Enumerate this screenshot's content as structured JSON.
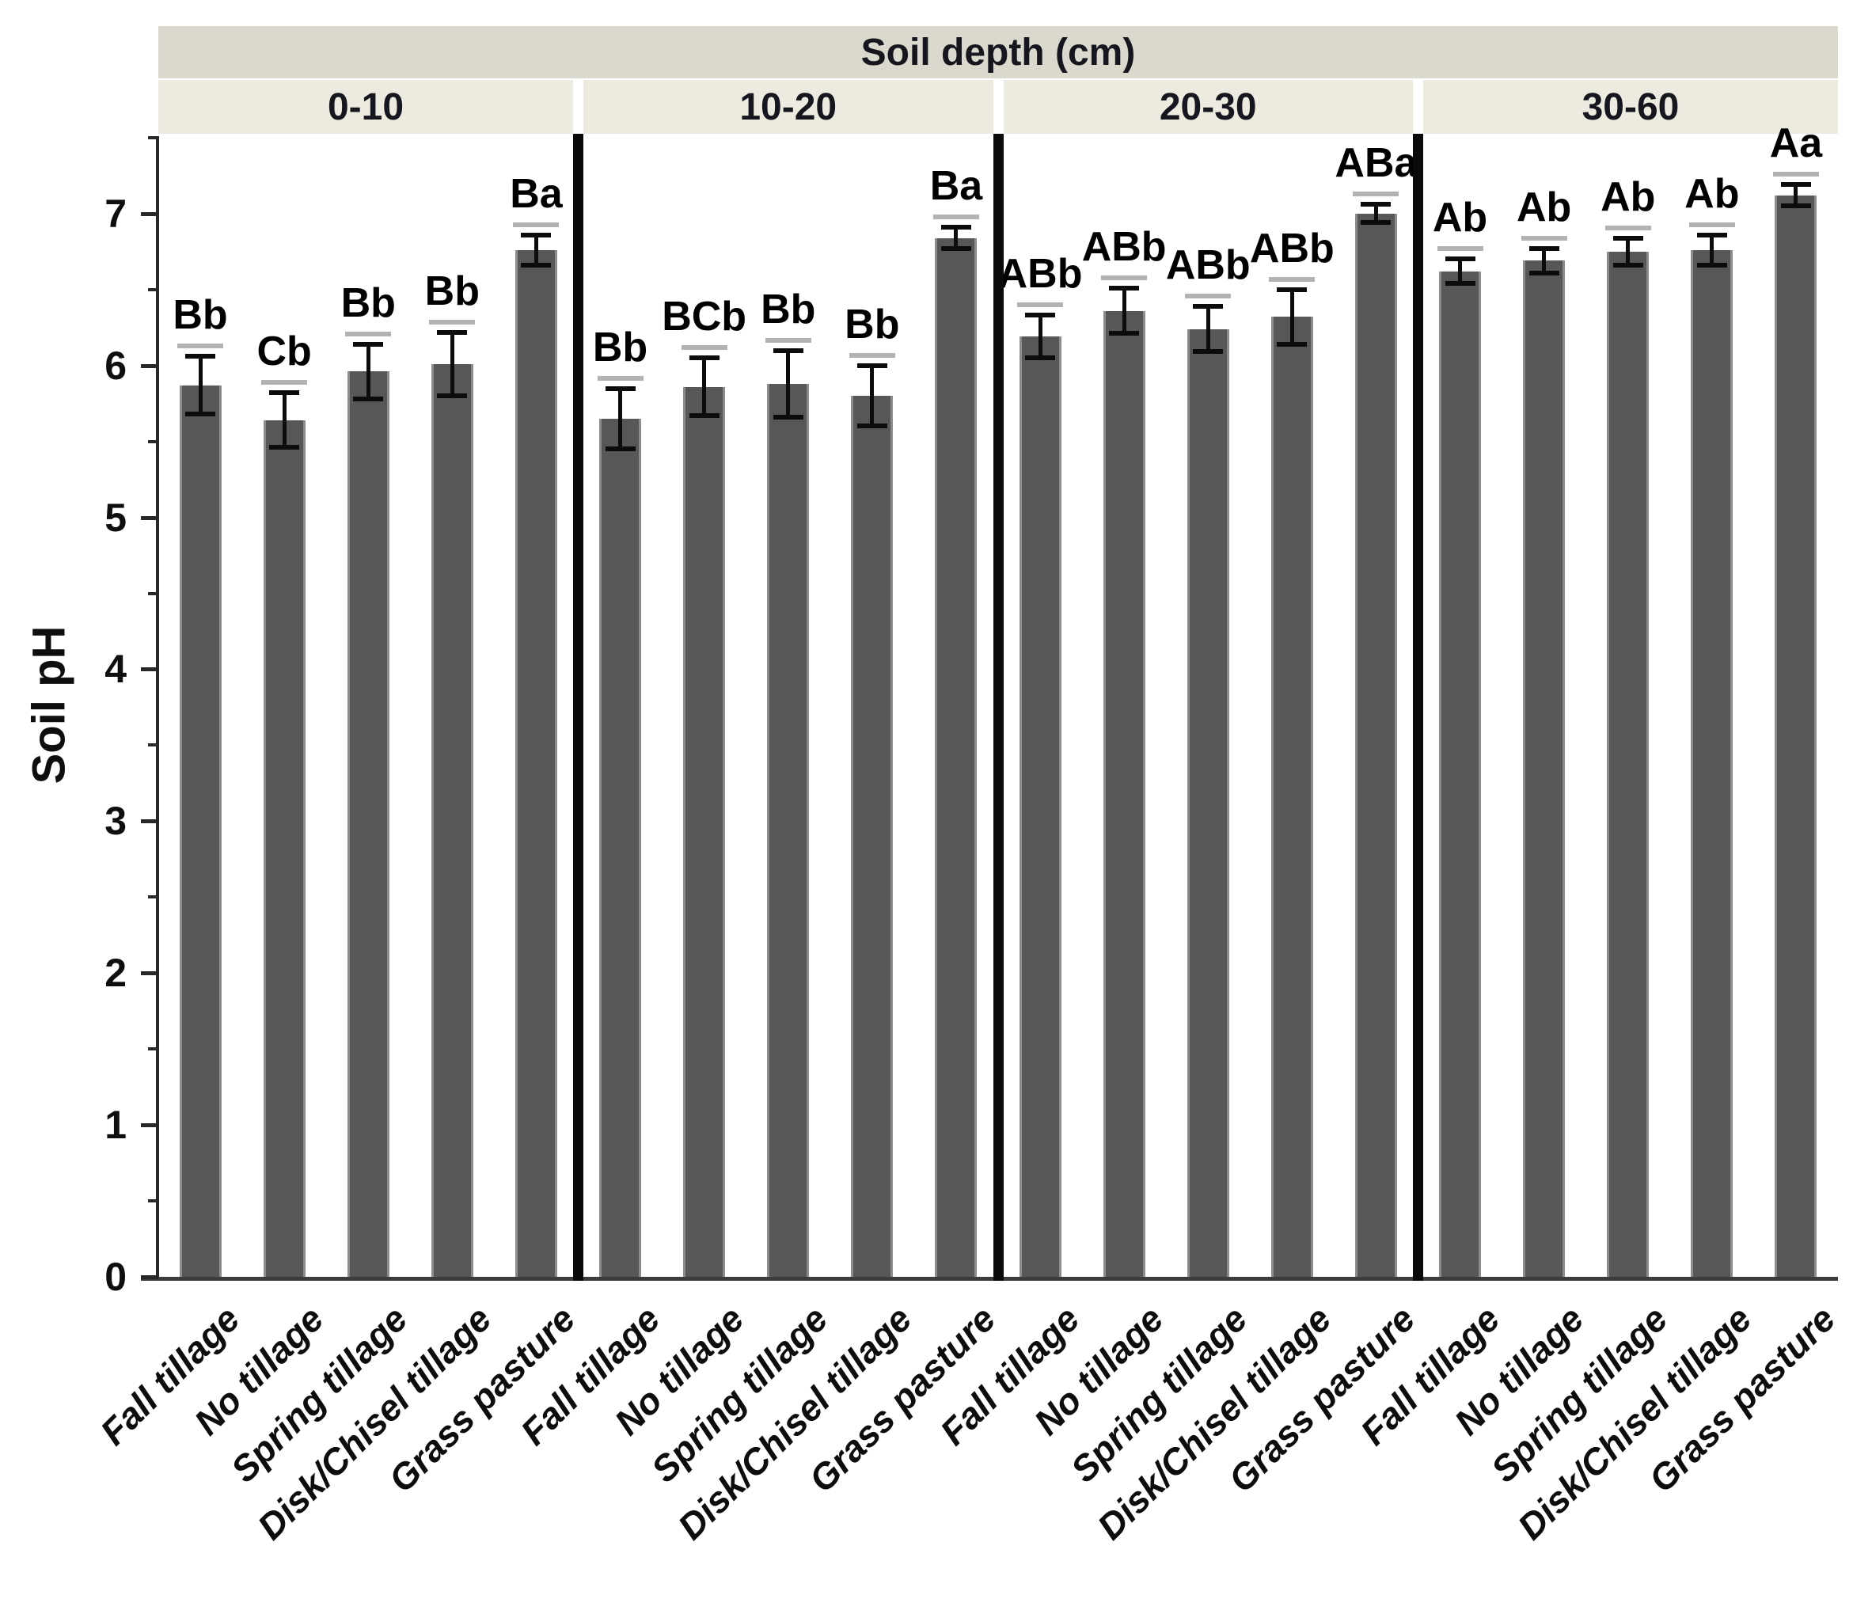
{
  "chart_data": {
    "type": "bar",
    "facet_title": "Soil depth (cm)",
    "ylabel": "Soil pH",
    "ylim": [
      0,
      7.5
    ],
    "yticks_major": [
      0,
      1,
      2,
      3,
      4,
      5,
      6,
      7
    ],
    "minor_tick_step": 0.5,
    "grid": false,
    "legend": "none",
    "bar_color": "#575757",
    "categories": [
      "Fall tillage",
      "No tillage",
      "Spring tillage",
      "Disk/Chisel tillage",
      "Grass pasture"
    ],
    "panels": [
      {
        "depth": "0-10",
        "values": [
          5.87,
          5.64,
          5.96,
          6.01,
          6.76
        ],
        "errors": [
          0.19,
          0.18,
          0.18,
          0.21,
          0.1
        ],
        "letters": [
          "Bb",
          "Cb",
          "Bb",
          "Bb",
          "Ba"
        ]
      },
      {
        "depth": "10-20",
        "values": [
          5.65,
          5.86,
          5.88,
          5.8,
          6.84
        ],
        "errors": [
          0.2,
          0.19,
          0.22,
          0.2,
          0.07
        ],
        "letters": [
          "Bb",
          "BCb",
          "Bb",
          "Bb",
          "Ba"
        ]
      },
      {
        "depth": "20-30",
        "values": [
          6.19,
          6.36,
          6.24,
          6.32,
          7.0
        ],
        "errors": [
          0.14,
          0.15,
          0.15,
          0.18,
          0.06
        ],
        "letters": [
          "ABb",
          "ABb",
          "ABb",
          "ABb",
          "ABa"
        ]
      },
      {
        "depth": "30-60",
        "values": [
          6.62,
          6.69,
          6.75,
          6.76,
          7.12
        ],
        "errors": [
          0.08,
          0.08,
          0.09,
          0.1,
          0.07
        ],
        "letters": [
          "Ab",
          "Ab",
          "Ab",
          "Ab",
          "Aa"
        ]
      }
    ]
  }
}
